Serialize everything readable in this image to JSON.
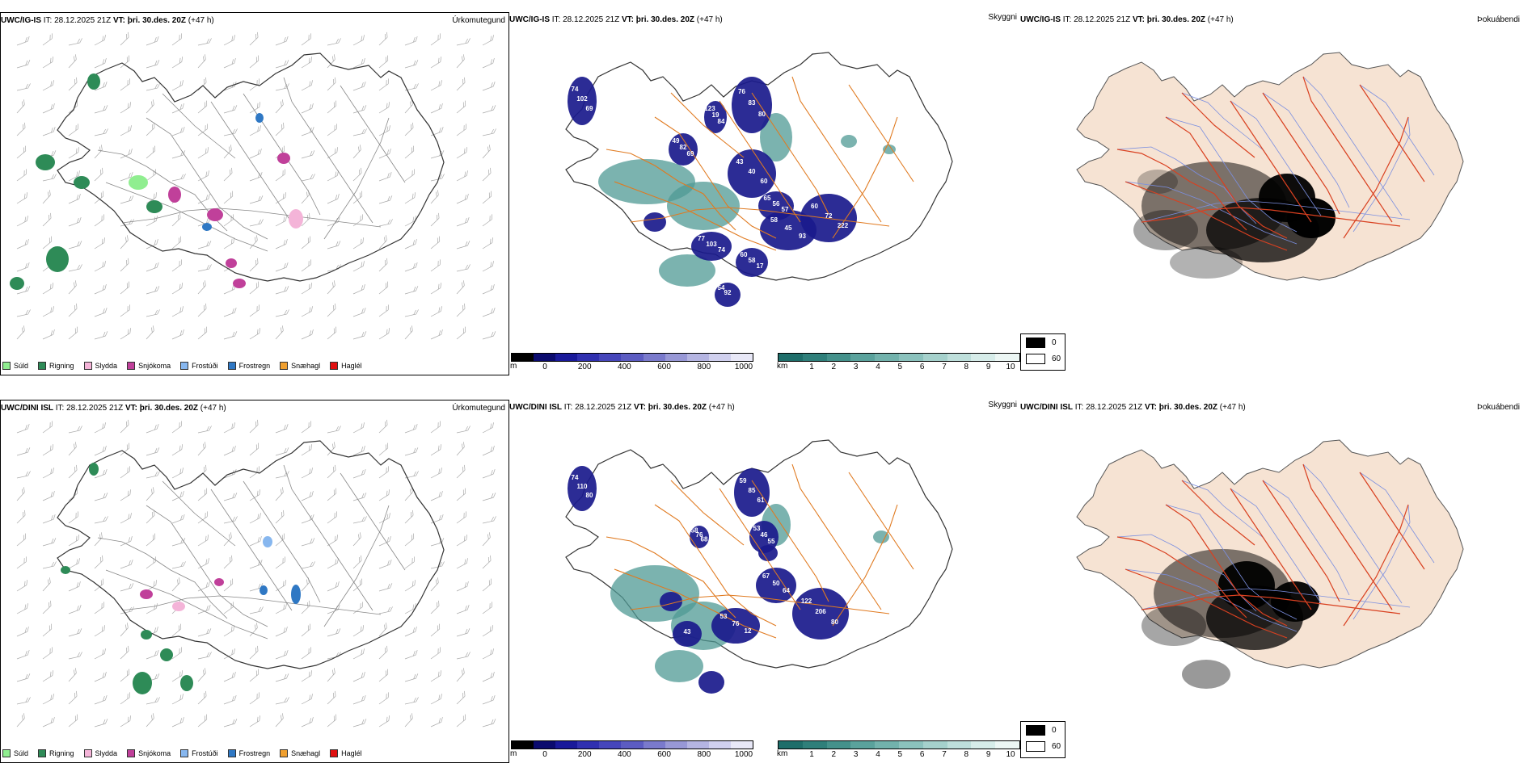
{
  "rows": [
    {
      "model": "UWC/IG-IS",
      "it_label": "IT:",
      "it_value": "28.12.2025 21Z",
      "vt_label": "VT:",
      "vt_value": "þri. 30.des. 20Z",
      "lead": "(+47 h)",
      "precip_title": "Úrkomutegund",
      "cloud_title": "Skyggni",
      "fog_title": "Þokuábendi",
      "cloud_numbers": [
        "102",
        "74",
        "69",
        "82",
        "49",
        "69",
        "19",
        "123",
        "84",
        "83",
        "76",
        "80",
        "40",
        "43",
        "60",
        "56",
        "65",
        "57",
        "45",
        "58",
        "93",
        "72",
        "60",
        "222",
        "103",
        "77",
        "74",
        "58",
        "60",
        "17",
        "92",
        "54"
      ]
    },
    {
      "model": "UWC/DINI ISL",
      "it_label": "IT:",
      "it_value": "28.12.2025 21Z",
      "vt_label": "VT:",
      "vt_value": "þri. 30.des. 20Z",
      "lead": "(+47 h)",
      "precip_title": "Úrkomutegund",
      "cloud_title": "Skyggni",
      "fog_title": "Þokuábendi",
      "cloud_numbers": [
        "110",
        "74",
        "80",
        "76",
        "58",
        "68",
        "85",
        "59",
        "61",
        "46",
        "53",
        "55",
        "50",
        "67",
        "64",
        "206",
        "122",
        "80",
        "76",
        "53",
        "12",
        "43"
      ]
    }
  ],
  "precip_legend": [
    {
      "label": "Súld",
      "color": "#90ee90"
    },
    {
      "label": "Rigning",
      "color": "#2e8b57"
    },
    {
      "label": "Slydda",
      "color": "#f4b4d8"
    },
    {
      "label": "Snjókoma",
      "color": "#c0409a"
    },
    {
      "label": "Frostúði",
      "color": "#87b7ef"
    },
    {
      "label": "Frostregn",
      "color": "#2f78c4"
    },
    {
      "label": "Snæhagl",
      "color": "#f0a030"
    },
    {
      "label": "Haglél",
      "color": "#e01010"
    }
  ],
  "cloudbase_bar": {
    "unit": "m",
    "ticks": [
      "0",
      "200",
      "400",
      "600",
      "800",
      "1000"
    ],
    "colors": [
      "#000000",
      "#0b0b6e",
      "#19199a",
      "#3030b0",
      "#4646bb",
      "#5c5cc2",
      "#7a7acc",
      "#9898d6",
      "#b5b5e2",
      "#d0d0ee",
      "#e8e8f7"
    ]
  },
  "visibility_bar": {
    "unit": "km",
    "ticks": [
      "1",
      "2",
      "3",
      "4",
      "5",
      "6",
      "7",
      "8",
      "9",
      "10"
    ],
    "colors": [
      "#1e6e6a",
      "#2f7f7a",
      "#44918b",
      "#5aa29c",
      "#72b2ac",
      "#8bc2bd",
      "#a5d1cc",
      "#bedfdb",
      "#d6ece9",
      "#ecf6f4"
    ]
  },
  "fog_legend": [
    {
      "label": "0",
      "color": "#000000"
    },
    {
      "label": "60",
      "color": "#ffffff"
    }
  ],
  "colors": {
    "road_orange": "#e07a20",
    "road_red": "#d94020",
    "river_blue": "#7b8fe0",
    "land_peach": "#f6e3d3",
    "cloud_navy": "#1a1a8c",
    "vis_teal": "#4f9a94"
  }
}
